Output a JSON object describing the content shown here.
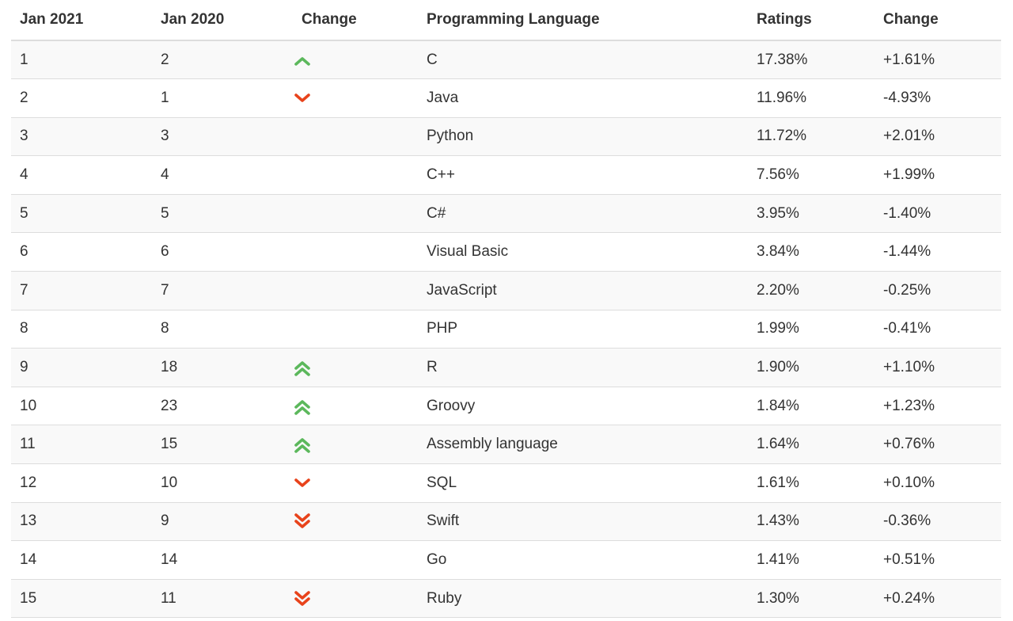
{
  "chart_data": {
    "type": "table",
    "columns": [
      "Jan 2021",
      "Jan 2020",
      "Change",
      "Programming Language",
      "Ratings",
      "Change"
    ],
    "rows": [
      {
        "jan2021": "1",
        "jan2020": "2",
        "trend": "up",
        "language": "C",
        "rating": "17.38%",
        "change": "+1.61%"
      },
      {
        "jan2021": "2",
        "jan2020": "1",
        "trend": "down",
        "language": "Java",
        "rating": "11.96%",
        "change": "-4.93%"
      },
      {
        "jan2021": "3",
        "jan2020": "3",
        "trend": "none",
        "language": "Python",
        "rating": "11.72%",
        "change": "+2.01%"
      },
      {
        "jan2021": "4",
        "jan2020": "4",
        "trend": "none",
        "language": "C++",
        "rating": "7.56%",
        "change": "+1.99%"
      },
      {
        "jan2021": "5",
        "jan2020": "5",
        "trend": "none",
        "language": "C#",
        "rating": "3.95%",
        "change": "-1.40%"
      },
      {
        "jan2021": "6",
        "jan2020": "6",
        "trend": "none",
        "language": "Visual Basic",
        "rating": "3.84%",
        "change": "-1.44%"
      },
      {
        "jan2021": "7",
        "jan2020": "7",
        "trend": "none",
        "language": "JavaScript",
        "rating": "2.20%",
        "change": "-0.25%"
      },
      {
        "jan2021": "8",
        "jan2020": "8",
        "trend": "none",
        "language": "PHP",
        "rating": "1.99%",
        "change": "-0.41%"
      },
      {
        "jan2021": "9",
        "jan2020": "18",
        "trend": "double-up",
        "language": "R",
        "rating": "1.90%",
        "change": "+1.10%"
      },
      {
        "jan2021": "10",
        "jan2020": "23",
        "trend": "double-up",
        "language": "Groovy",
        "rating": "1.84%",
        "change": "+1.23%"
      },
      {
        "jan2021": "11",
        "jan2020": "15",
        "trend": "double-up",
        "language": "Assembly language",
        "rating": "1.64%",
        "change": "+0.76%"
      },
      {
        "jan2021": "12",
        "jan2020": "10",
        "trend": "down",
        "language": "SQL",
        "rating": "1.61%",
        "change": "+0.10%"
      },
      {
        "jan2021": "13",
        "jan2020": "9",
        "trend": "double-down",
        "language": "Swift",
        "rating": "1.43%",
        "change": "-0.36%"
      },
      {
        "jan2021": "14",
        "jan2020": "14",
        "trend": "none",
        "language": "Go",
        "rating": "1.41%",
        "change": "+0.51%"
      },
      {
        "jan2021": "15",
        "jan2020": "11",
        "trend": "double-down",
        "language": "Ruby",
        "rating": "1.30%",
        "change": "+0.24%"
      }
    ]
  },
  "colors": {
    "up": "#5cb85c",
    "down": "#e8431b",
    "text": "#333333",
    "border": "#dddddd",
    "stripe": "#f9f9f9"
  },
  "icons": {
    "up": "chevron-up-icon",
    "down": "chevron-down-icon",
    "double-up": "double-chevron-up-icon",
    "double-down": "double-chevron-down-icon"
  }
}
